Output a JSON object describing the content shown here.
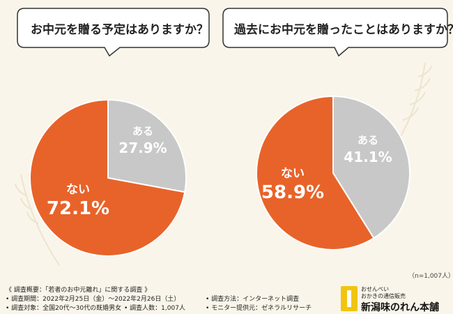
{
  "chart_data": [
    {
      "type": "pie",
      "title": "お中元を贈る予定はありますか？",
      "categories": [
        "ある",
        "ない"
      ],
      "values": [
        27.9,
        72.1
      ],
      "labels": [
        "27.9%",
        "72.1%"
      ],
      "colors": [
        "#c8c8c8",
        "#e8632a"
      ]
    },
    {
      "type": "pie",
      "title": "過去にお中元を贈ったことはありますか？",
      "categories": [
        "ある",
        "ない"
      ],
      "values": [
        41.1,
        58.9
      ],
      "labels": [
        "41.1%",
        "58.9%"
      ],
      "colors": [
        "#c8c8c8",
        "#e8632a"
      ]
    }
  ],
  "sample_note": "（n=1,007人）",
  "footer": {
    "title": "《 調査概要：「若者のお中元離れ」に関する調査 》",
    "period": "• 調査期間：2022年2月25日（金）～2022年2月26日（土）",
    "target": "• 調査対象：全国20代～30代の既婚男女",
    "count": "• 調査人数：1,007人",
    "method": "• 調査方法：インターネット調査",
    "provider": "• モニター提供元：ゼネラルリサーチ"
  },
  "brand": {
    "line1": "おせんべい",
    "line2": "おかきの通信販売",
    "name": "新潟味のれん本舗"
  },
  "colors": {
    "background": "#f9f5ea",
    "accent": "#e8632a",
    "gray": "#c8c8c8"
  }
}
